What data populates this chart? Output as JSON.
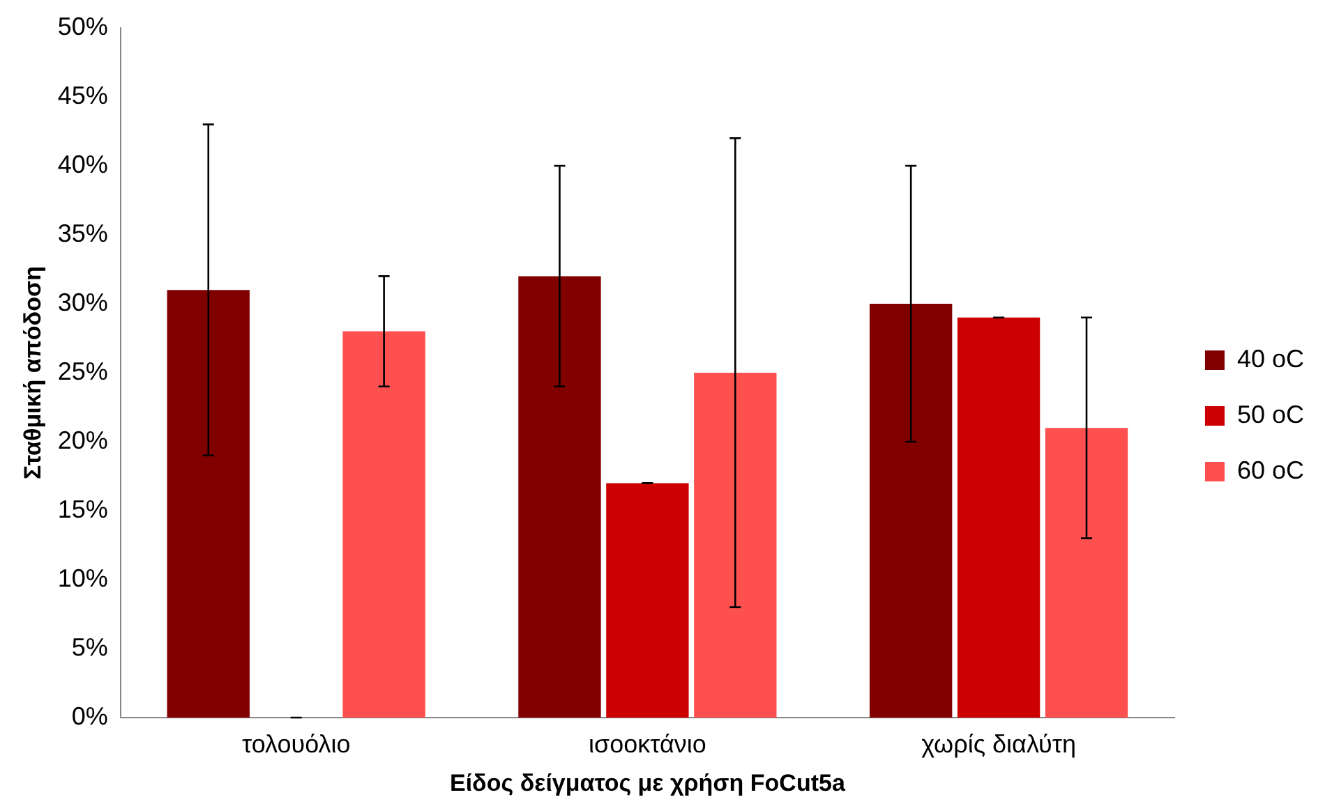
{
  "chart_data": {
    "type": "bar",
    "xlabel": "Είδος δείγματος με χρήση FoCut5a",
    "ylabel": "Σταθμική απόδοση",
    "categories": [
      "τολουόλιο",
      "ισοοκτάνιο",
      "χωρίς διαλύτη"
    ],
    "series": [
      {
        "name": "40 oC",
        "color": "#800000",
        "values": [
          31,
          32,
          30
        ],
        "errors": [
          12,
          8,
          10
        ]
      },
      {
        "name": "50 oC",
        "color": "#cc0000",
        "values": [
          0,
          17,
          29
        ],
        "errors": [
          0,
          0,
          0
        ]
      },
      {
        "name": "60 oC",
        "color": "#ff5050",
        "values": [
          28,
          25,
          21
        ],
        "errors": [
          4,
          17,
          8
        ]
      }
    ],
    "ylim": [
      0,
      50
    ],
    "yticks": [
      {
        "value": 0,
        "label": "0%"
      },
      {
        "value": 5,
        "label": "5%"
      },
      {
        "value": 10,
        "label": "10%"
      },
      {
        "value": 15,
        "label": "15%"
      },
      {
        "value": 20,
        "label": "20%"
      },
      {
        "value": 25,
        "label": "25%"
      },
      {
        "value": 30,
        "label": "30%"
      },
      {
        "value": 35,
        "label": "35%"
      },
      {
        "value": 40,
        "label": "40%"
      },
      {
        "value": 45,
        "label": "45%"
      },
      {
        "value": 50,
        "label": "50%"
      }
    ],
    "grid": false,
    "legend": "right"
  }
}
